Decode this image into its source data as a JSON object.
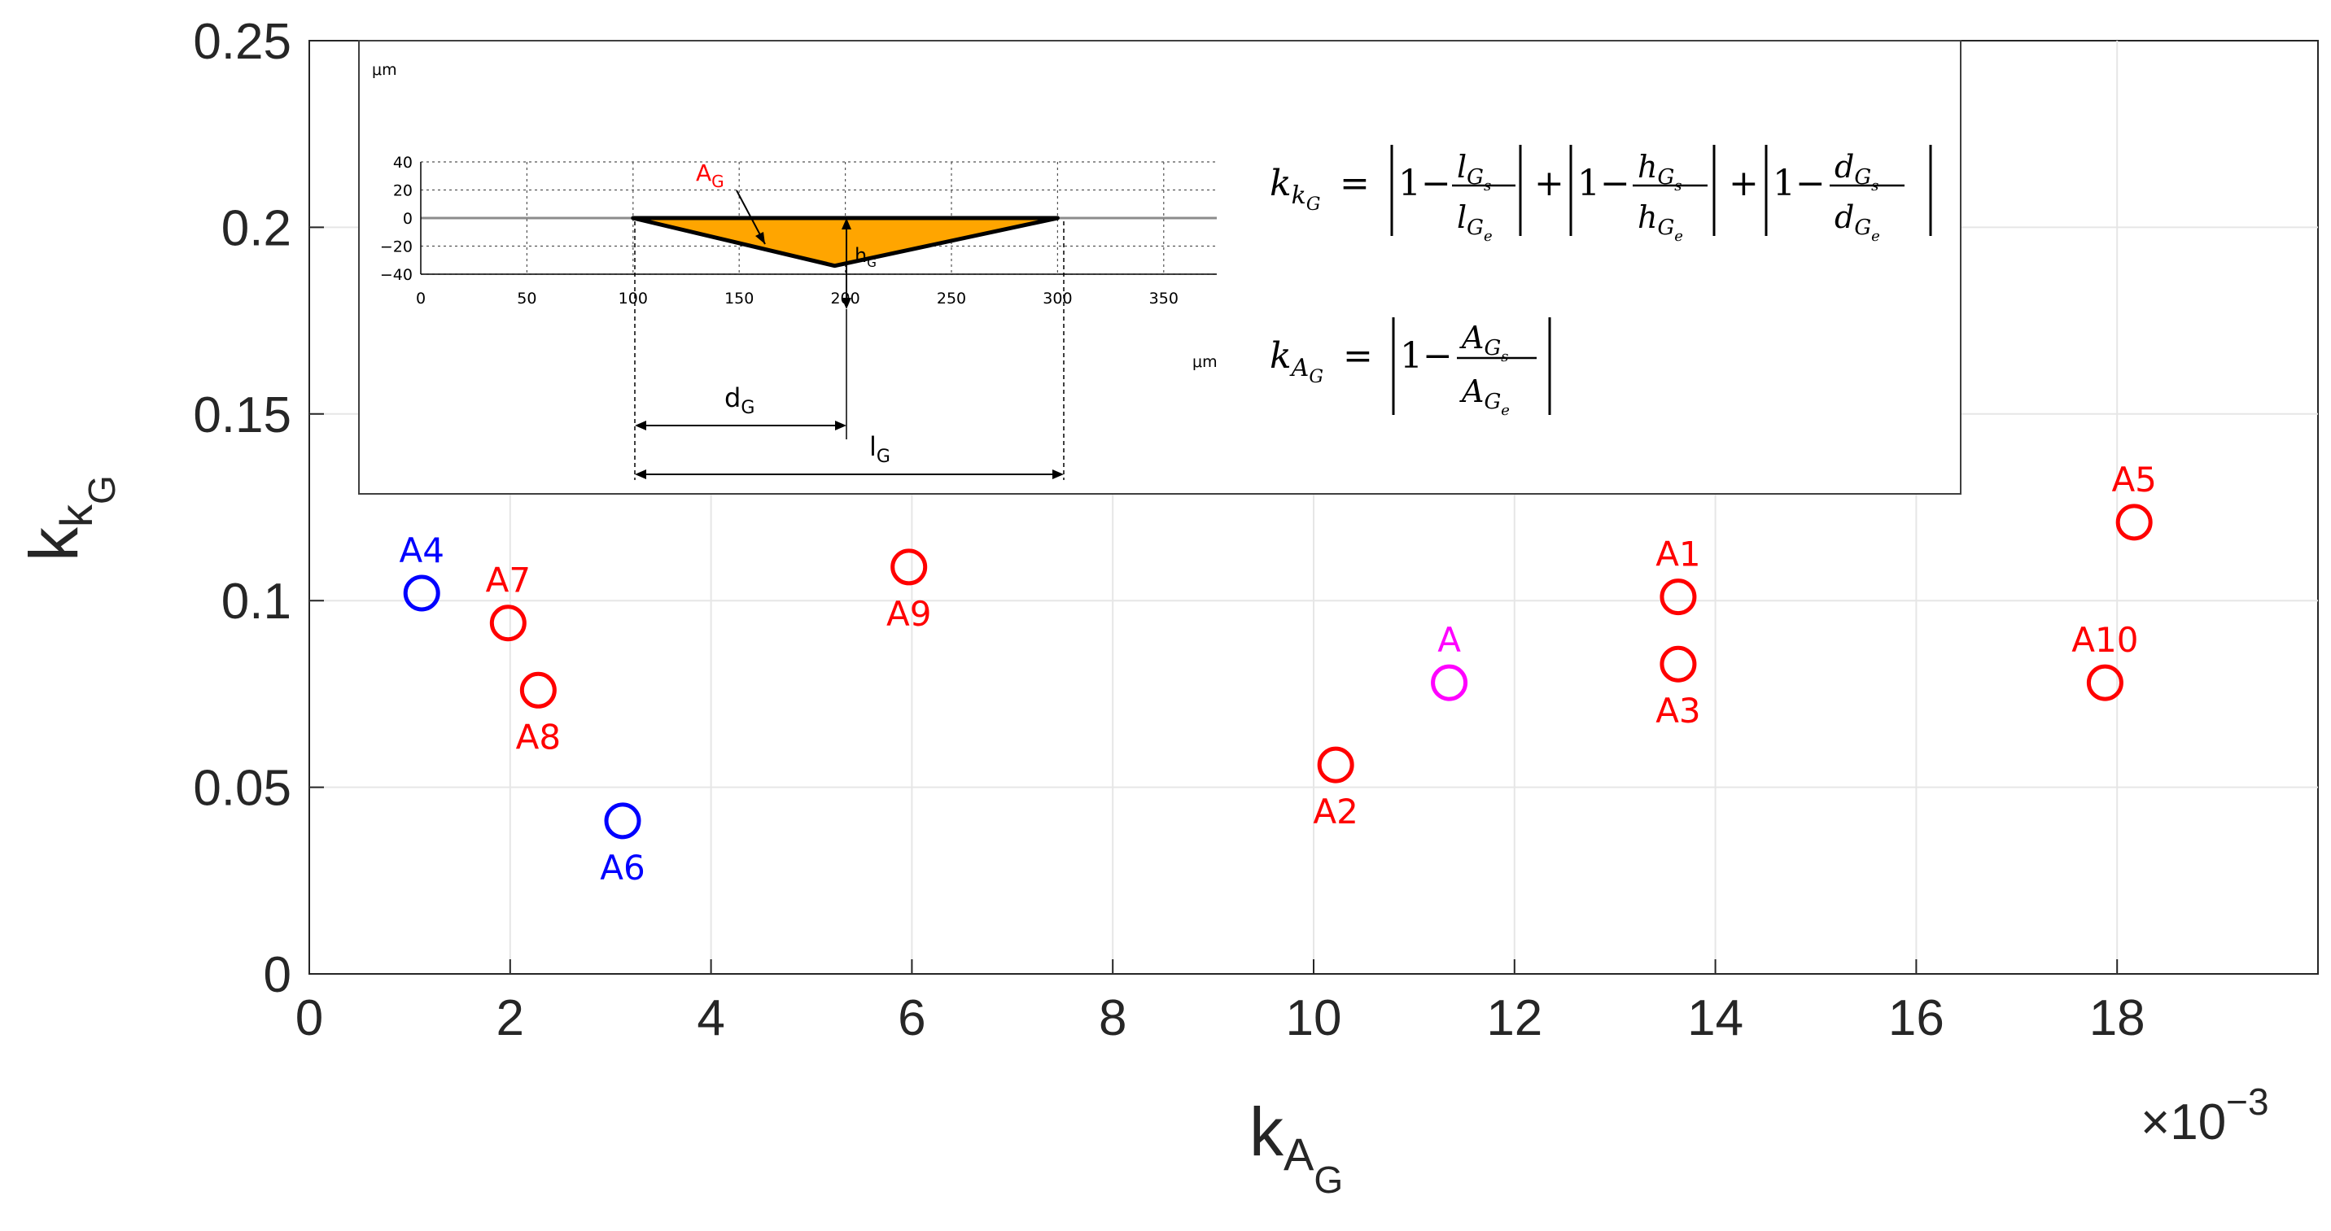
{
  "chart_data": {
    "type": "scatter",
    "title": "",
    "xlabel": "k",
    "xlabel_sub": "A",
    "xlabel_subsub": "G",
    "ylabel": "k",
    "ylabel_sub": "k",
    "ylabel_subsub": "G",
    "x_multiplier": "×10",
    "x_multiplier_exp": "−3",
    "xlim": [
      0,
      20
    ],
    "ylim": [
      0,
      0.25
    ],
    "grid": true,
    "x_ticks": [
      0,
      2,
      4,
      6,
      8,
      10,
      12,
      14,
      16,
      18
    ],
    "x_tick_labels": [
      "0",
      "2",
      "4",
      "6",
      "8",
      "10",
      "12",
      "14",
      "16",
      "18"
    ],
    "y_ticks": [
      0,
      0.05,
      0.1,
      0.15,
      0.2,
      0.25
    ],
    "y_tick_labels": [
      "0",
      "0.05",
      "0.1",
      "0.15",
      "0.2",
      "0.25"
    ],
    "points": [
      {
        "label": "A4",
        "x": 1.12,
        "y": 0.102,
        "color": "#0000ff",
        "label_pos": "above"
      },
      {
        "label": "A7",
        "x": 1.98,
        "y": 0.094,
        "color": "#ff0000",
        "label_pos": "above"
      },
      {
        "label": "A8",
        "x": 2.28,
        "y": 0.076,
        "color": "#ff0000",
        "label_pos": "below"
      },
      {
        "label": "A6",
        "x": 3.12,
        "y": 0.041,
        "color": "#0000ff",
        "label_pos": "below"
      },
      {
        "label": "A9",
        "x": 5.97,
        "y": 0.109,
        "color": "#ff0000",
        "label_pos": "below"
      },
      {
        "label": "A2",
        "x": 10.22,
        "y": 0.056,
        "color": "#ff0000",
        "label_pos": "below"
      },
      {
        "label": "A",
        "x": 11.35,
        "y": 0.078,
        "color": "#ff00ff",
        "label_pos": "above"
      },
      {
        "label": "A1",
        "x": 13.63,
        "y": 0.101,
        "color": "#ff0000",
        "label_pos": "above"
      },
      {
        "label": "A3",
        "x": 13.63,
        "y": 0.083,
        "color": "#ff0000",
        "label_pos": "below"
      },
      {
        "label": "A5",
        "x": 18.17,
        "y": 0.121,
        "color": "#ff0000",
        "label_pos": "above"
      },
      {
        "label": "A10",
        "x": 17.88,
        "y": 0.078,
        "color": "#ff0000",
        "label_pos": "above"
      }
    ]
  },
  "inset": {
    "unit_top": "μm",
    "unit_right": "μm",
    "y_ticks": [
      40,
      20,
      0,
      -20,
      -40
    ],
    "y_tick_labels": [
      "40",
      "20",
      "0",
      "−20",
      "−40"
    ],
    "x_ticks": [
      0,
      50,
      100,
      150,
      200,
      250,
      300,
      350
    ],
    "x_tick_labels": [
      "0",
      "50",
      "100",
      "150",
      "200",
      "250",
      "300",
      "350"
    ],
    "groove_points": [
      [
        100,
        0
      ],
      [
        195,
        -34
      ],
      [
        300,
        0
      ]
    ],
    "groove_color": "#ffa500",
    "area_label": "A",
    "area_label_sub": "G",
    "height_label": "h",
    "height_label_sub": "G",
    "depth_label": "d",
    "depth_label_sub": "G",
    "length_label": "l",
    "length_label_sub": "G"
  },
  "formulas": {
    "f1_lhs": "k",
    "f1_lhs_sub": "k",
    "f1_lhs_subsub": "G",
    "f2_lhs": "k",
    "f2_lhs_sub": "A",
    "f2_lhs_subsub": "G",
    "eq": "=",
    "one_minus": "1−",
    "plus": "+",
    "l_num": "l",
    "l_den": "l",
    "h_num": "h",
    "h_den": "h",
    "d_num": "d",
    "d_den": "d",
    "a_num": "A",
    "a_den": "A",
    "sub_G": "G",
    "sub_s": "s",
    "sub_e": "e"
  }
}
